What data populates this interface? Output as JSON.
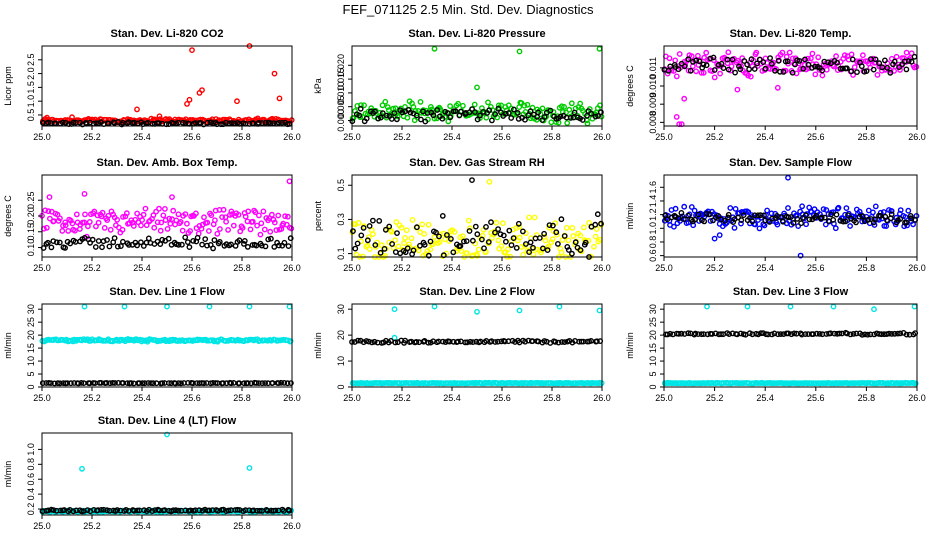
{
  "main_title": "FEF_071125  2.5 Min. Std. Dev. Diagnostics",
  "chart_data": [
    {
      "type": "scatter",
      "title": "Stan. Dev. Li-820 CO2",
      "ylabel": "Licor ppm",
      "xlabel": "",
      "xlim": [
        25.0,
        26.0
      ],
      "ylim": [
        0.1,
        3.0
      ],
      "x_ticks": [
        "25.0",
        "25.2",
        "25.4",
        "25.6",
        "25.8",
        "26.0"
      ],
      "y_ticks": [
        "0.5",
        "1.0",
        "1.5",
        "2.0",
        "2.5"
      ],
      "series": [
        {
          "name": "red",
          "color": "#ff0000",
          "baseline": 0.3,
          "spread": 0.12,
          "outliers": [
            [
              25.02,
              0.4
            ],
            [
              25.12,
              0.42
            ],
            [
              25.38,
              0.7
            ],
            [
              25.47,
              0.45
            ],
            [
              25.58,
              0.9
            ],
            [
              25.59,
              1.05
            ],
            [
              25.6,
              2.85
            ],
            [
              25.63,
              1.3
            ],
            [
              25.64,
              1.4
            ],
            [
              25.78,
              1.0
            ],
            [
              25.83,
              3.0
            ],
            [
              25.93,
              2.0
            ],
            [
              25.95,
              1.1
            ]
          ]
        },
        {
          "name": "black",
          "color": "#000000",
          "baseline": 0.2,
          "spread": 0.07,
          "outliers": []
        }
      ]
    },
    {
      "type": "scatter",
      "title": "Stan. Dev. Li-820 Pressure",
      "ylabel": "kPa",
      "xlabel": "",
      "xlim": [
        25.0,
        26.0
      ],
      "ylim": [
        -0.002,
        0.027
      ],
      "x_ticks": [
        "25.0",
        "25.2",
        "25.4",
        "25.6",
        "25.8",
        "26.0"
      ],
      "y_ticks": [
        "0.000",
        "0.005",
        "0.010",
        "0.015",
        "0.020"
      ],
      "series": [
        {
          "name": "green",
          "color": "#00cc00",
          "baseline": 0.003,
          "spread": 0.0065,
          "outliers": [
            [
              25.33,
              0.026
            ],
            [
              25.5,
              0.012
            ],
            [
              25.67,
              0.025
            ],
            [
              25.99,
              0.026
            ]
          ]
        },
        {
          "name": "black",
          "color": "#000000",
          "baseline": 0.002,
          "spread": 0.004,
          "outliers": []
        }
      ]
    },
    {
      "type": "scatter",
      "title": "Stan. Dev. Li-820 Temp.",
      "ylabel": "degrees C",
      "xlabel": "",
      "xlim": [
        25.0,
        26.0
      ],
      "ylim": [
        0.0078,
        0.0122
      ],
      "x_ticks": [
        "25.0",
        "25.2",
        "25.4",
        "25.6",
        "25.8",
        "26.0"
      ],
      "y_ticks": [
        "0.008",
        "0.009",
        "0.010",
        "0.011"
      ],
      "series": [
        {
          "name": "magenta",
          "color": "#ff00ff",
          "baseline": 0.0112,
          "spread": 0.0011,
          "outliers": [
            [
              25.06,
              0.0079
            ],
            [
              25.07,
              0.0079
            ],
            [
              25.05,
              0.0083
            ],
            [
              25.08,
              0.0093
            ],
            [
              25.29,
              0.0098
            ],
            [
              25.45,
              0.0099
            ]
          ]
        },
        {
          "name": "black",
          "color": "#000000",
          "baseline": 0.01115,
          "spread": 0.0007,
          "outliers": []
        }
      ]
    },
    {
      "type": "scatter",
      "title": "Stan. Dev. Amb. Box Temp.",
      "ylabel": "degrees C",
      "xlabel": "",
      "xlim": [
        25.0,
        26.0
      ],
      "ylim": [
        0.07,
        0.33
      ],
      "x_ticks": [
        "25.0",
        "25.2",
        "25.4",
        "25.6",
        "25.8",
        "26.0"
      ],
      "y_ticks": [
        "0.10",
        "0.15",
        "0.20",
        "0.25"
      ],
      "series": [
        {
          "name": "magenta",
          "color": "#ff00ff",
          "baseline": 0.18,
          "spread": 0.07,
          "outliers": [
            [
              25.03,
              0.26
            ],
            [
              25.17,
              0.27
            ],
            [
              25.52,
              0.26
            ],
            [
              25.99,
              0.31
            ]
          ]
        },
        {
          "name": "black",
          "color": "#000000",
          "baseline": 0.115,
          "spread": 0.03,
          "outliers": []
        }
      ]
    },
    {
      "type": "scatter",
      "title": "Stan. Dev. Gas Stream RH",
      "ylabel": "percent",
      "xlabel": "",
      "xlim": [
        25.0,
        26.0
      ],
      "ylim": [
        0.08,
        0.56
      ],
      "x_ticks": [
        "25.0",
        "25.2",
        "25.4",
        "25.6",
        "25.8",
        "26.0"
      ],
      "y_ticks": [
        "0.1",
        "0.3",
        "0.5"
      ],
      "series": [
        {
          "name": "yellow",
          "color": "#ffff00",
          "baseline": 0.17,
          "spread": 0.22,
          "outliers": [
            [
              25.55,
              0.52
            ]
          ]
        },
        {
          "name": "black",
          "color": "#000000",
          "baseline": 0.2,
          "spread": 0.2,
          "outliers": [
            [
              25.48,
              0.53
            ]
          ]
        }
      ]
    },
    {
      "type": "scatter",
      "title": "Stan. Dev. Sample Flow",
      "ylabel": "ml/min",
      "xlabel": "",
      "xlim": [
        25.0,
        26.0
      ],
      "ylim": [
        0.58,
        1.78
      ],
      "x_ticks": [
        "25.0",
        "25.2",
        "25.4",
        "25.6",
        "25.8",
        "26.0"
      ],
      "y_ticks": [
        "0.6",
        "0.8",
        "1.0",
        "1.2",
        "1.4",
        "1.6"
      ],
      "series": [
        {
          "name": "blue",
          "color": "#0000ff",
          "baseline": 1.17,
          "spread": 0.28,
          "outliers": [
            [
              25.49,
              1.74
            ],
            [
              25.54,
              0.6
            ],
            [
              25.22,
              0.9
            ],
            [
              25.2,
              0.85
            ]
          ]
        },
        {
          "name": "black",
          "color": "#000000",
          "baseline": 1.15,
          "spread": 0.12,
          "outliers": []
        }
      ]
    },
    {
      "type": "scatter",
      "title": "Stan. Dev. Line 1 Flow",
      "ylabel": "ml/min",
      "xlabel": "",
      "xlim": [
        25.0,
        26.0
      ],
      "ylim": [
        0,
        32
      ],
      "x_ticks": [
        "25.0",
        "25.2",
        "25.4",
        "25.6",
        "25.8",
        "26.0"
      ],
      "y_ticks": [
        "0",
        "5",
        "10",
        "15",
        "20",
        "25",
        "30"
      ],
      "series": [
        {
          "name": "cyan",
          "color": "#00e5e5",
          "baseline": 18,
          "spread": 0.8,
          "outliers": [
            [
              25.17,
              31
            ],
            [
              25.33,
              31
            ],
            [
              25.5,
              31
            ],
            [
              25.67,
              31
            ],
            [
              25.83,
              31
            ],
            [
              25.99,
              31
            ]
          ]
        },
        {
          "name": "black",
          "color": "#000000",
          "baseline": 1.5,
          "spread": 0.2,
          "outliers": []
        }
      ]
    },
    {
      "type": "scatter",
      "title": "Stan. Dev. Line 2 Flow",
      "ylabel": "ml/min",
      "xlabel": "",
      "xlim": [
        25.0,
        26.0
      ],
      "ylim": [
        0,
        32
      ],
      "x_ticks": [
        "25.0",
        "25.2",
        "25.4",
        "25.6",
        "25.8",
        "26.0"
      ],
      "y_ticks": [
        "0",
        "10",
        "20",
        "30"
      ],
      "series": [
        {
          "name": "cyan",
          "color": "#00e5e5",
          "baseline": 1.5,
          "spread": 0.2,
          "outliers": [
            [
              25.17,
              30
            ],
            [
              25.33,
              31
            ],
            [
              25.5,
              29
            ],
            [
              25.67,
              29.5
            ],
            [
              25.83,
              31
            ],
            [
              25.99,
              29.5
            ],
            [
              25.17,
              19
            ]
          ]
        },
        {
          "name": "black",
          "color": "#000000",
          "baseline": 17.5,
          "spread": 0.8,
          "outliers": []
        }
      ]
    },
    {
      "type": "scatter",
      "title": "Stan. Dev. Line 3 Flow",
      "ylabel": "ml/min",
      "xlabel": "",
      "xlim": [
        25.0,
        26.0
      ],
      "ylim": [
        0,
        32
      ],
      "x_ticks": [
        "25.0",
        "25.2",
        "25.4",
        "25.6",
        "25.8",
        "26.0"
      ],
      "y_ticks": [
        "0",
        "5",
        "10",
        "15",
        "20",
        "25",
        "30"
      ],
      "series": [
        {
          "name": "cyan",
          "color": "#00e5e5",
          "baseline": 1.5,
          "spread": 0.2,
          "outliers": [
            [
              25.17,
              31
            ],
            [
              25.33,
              31
            ],
            [
              25.5,
              31
            ],
            [
              25.67,
              31
            ],
            [
              25.83,
              30
            ],
            [
              25.99,
              31
            ]
          ]
        },
        {
          "name": "black",
          "color": "#000000",
          "baseline": 20.5,
          "spread": 0.6,
          "outliers": []
        }
      ]
    },
    {
      "type": "scatter",
      "title": "Stan. Dev. Line 4 (LT) Flow",
      "ylabel": "ml/min",
      "xlabel": "",
      "xlim": [
        25.0,
        26.0
      ],
      "ylim": [
        0.12,
        1.22
      ],
      "x_ticks": [
        "25.0",
        "25.2",
        "25.4",
        "25.6",
        "25.8",
        "26.0"
      ],
      "y_ticks": [
        "0.2",
        "0.4",
        "0.6",
        "0.8",
        "1.0"
      ],
      "series": [
        {
          "name": "cyan",
          "color": "#00e5e5",
          "baseline": 0.17,
          "spread": 0.02,
          "outliers": [
            [
              25.16,
              0.74
            ],
            [
              25.5,
              1.2
            ],
            [
              25.83,
              0.75
            ]
          ]
        },
        {
          "name": "black",
          "color": "#000000",
          "baseline": 0.18,
          "spread": 0.02,
          "outliers": []
        }
      ]
    }
  ]
}
